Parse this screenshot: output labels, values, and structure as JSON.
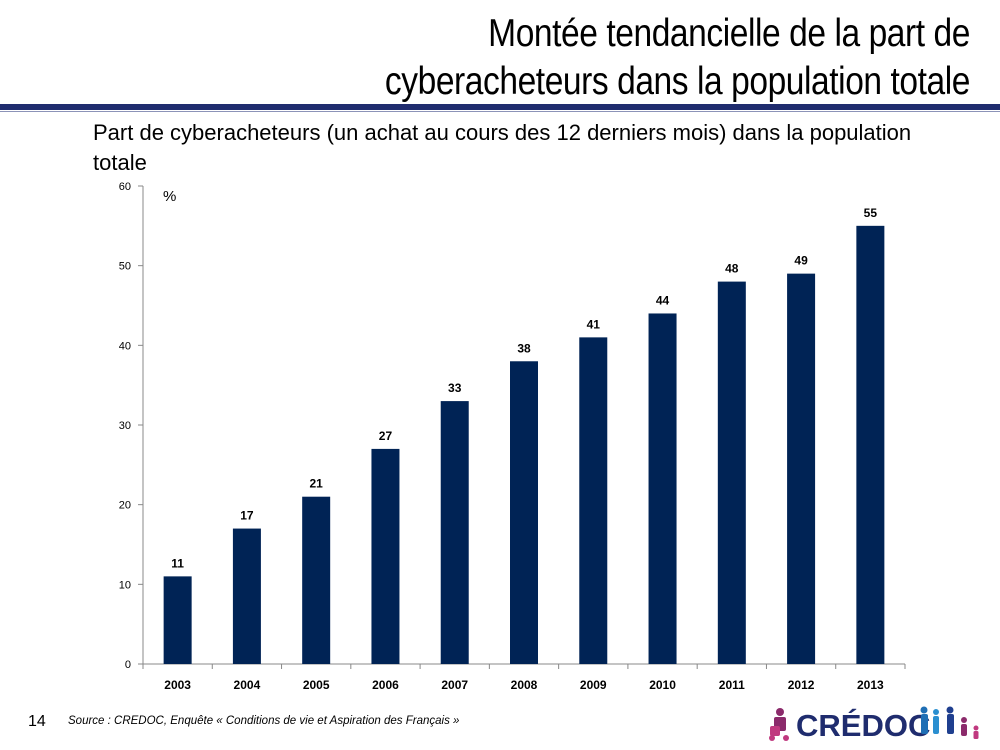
{
  "slide": {
    "title_line1": "Montée  tendancielle de la part de",
    "title_line2": "cyberacheteurs dans la population totale",
    "page_number": "14",
    "source": "Source : CREDOC, Enquête « Conditions de vie et Aspiration des Français »",
    "logo_text": "CRÉDOC"
  },
  "colors": {
    "bar": "#002355",
    "title_rule": "#1f2c6e",
    "axis": "#888888"
  },
  "chart_data": {
    "type": "bar",
    "title": "Part de cyberacheteurs (un achat au cours des 12 derniers mois) dans la population totale",
    "ylabel": "%",
    "categories": [
      "2003",
      "2004",
      "2005",
      "2006",
      "2007",
      "2008",
      "2009",
      "2010",
      "2011",
      "2012",
      "2013"
    ],
    "values": [
      11,
      17,
      21,
      27,
      33,
      38,
      41,
      44,
      48,
      49,
      55
    ],
    "ylim": [
      0,
      60
    ],
    "yticks": [
      0,
      10,
      20,
      30,
      40,
      50,
      60
    ],
    "grid": false,
    "legend": "none",
    "data_labels": true
  }
}
